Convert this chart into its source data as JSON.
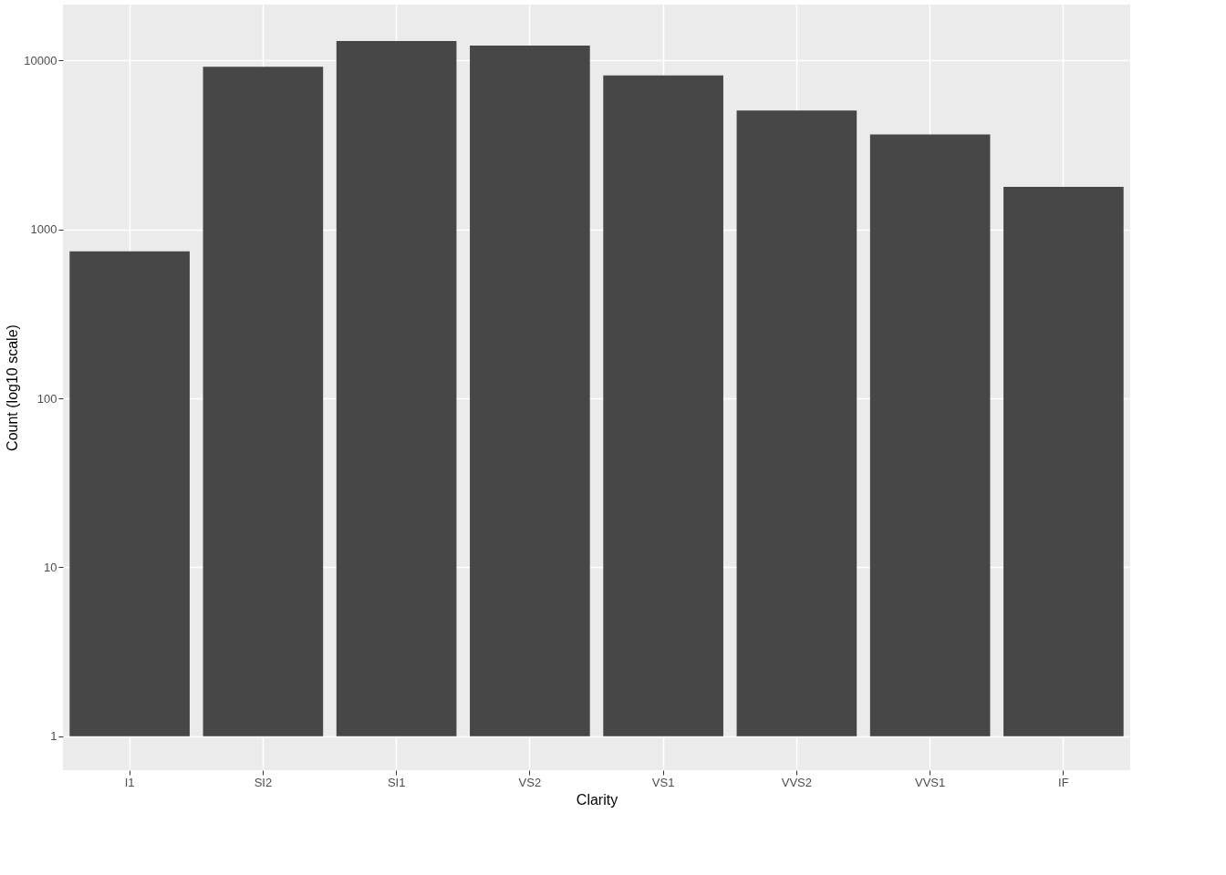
{
  "chart_data": {
    "type": "bar",
    "xlabel": "Clarity",
    "ylabel": "Count (log10 scale)",
    "categories": [
      "I1",
      "SI2",
      "SI1",
      "VS2",
      "VS1",
      "VVS2",
      "VVS1",
      "IF"
    ],
    "values": [
      741,
      9194,
      13065,
      12258,
      8171,
      5066,
      3655,
      1790
    ],
    "color": "#474747",
    "base": [
      1,
      1,
      1,
      1,
      1,
      1,
      1,
      1
    ],
    "log": true,
    "ylim": [
      0.63,
      21470
    ],
    "yticks": [
      1,
      10,
      100,
      1000,
      10000
    ],
    "grid": true
  }
}
